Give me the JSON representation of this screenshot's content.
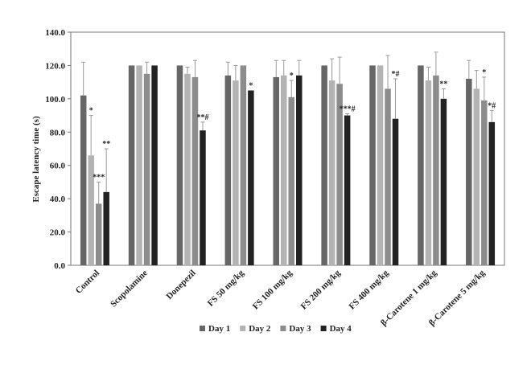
{
  "chart_data": {
    "type": "bar",
    "ylabel": "Escape latency time (s)",
    "xlabel": "",
    "ylim": [
      0,
      140
    ],
    "yticks": [
      "0.0",
      "20.0",
      "40.0",
      "60.0",
      "80.0",
      "100.0",
      "120.0",
      "140.0"
    ],
    "grid": false,
    "legend_position": "bottom",
    "categories": [
      "Control",
      "Scopolamine",
      "Donepezil",
      "FS 50 mg/kg",
      "FS 100 mg/kg",
      "FS 200 mg/kg",
      "FS 400 mg/kg",
      "β-Carotene 1 mg/kg",
      "β-Carotene 5 mg/kg"
    ],
    "series": [
      {
        "name": "Day 1",
        "color": "#666666",
        "values": [
          102,
          120,
          120,
          114,
          113,
          120,
          120,
          120,
          112
        ],
        "errors": [
          20,
          0,
          0,
          8,
          10,
          0,
          0,
          0,
          11
        ],
        "annotations": [
          "",
          "",
          "",
          "",
          "",
          "",
          "",
          "",
          ""
        ]
      },
      {
        "name": "Day 2",
        "color": "#b3b3b3",
        "values": [
          66,
          120,
          115,
          111,
          114,
          111,
          120,
          111,
          106
        ],
        "errors": [
          24,
          0,
          4,
          9,
          9,
          13,
          0,
          8,
          11
        ],
        "annotations": [
          "*",
          "",
          "",
          "",
          "",
          "",
          "",
          "",
          ""
        ]
      },
      {
        "name": "Day 3",
        "color": "#8c8c8c",
        "values": [
          37,
          115,
          113,
          120,
          101,
          109,
          106,
          114,
          99
        ],
        "errors": [
          13,
          7,
          10,
          0,
          10,
          16,
          20,
          14,
          14
        ],
        "annotations": [
          "***",
          "",
          "",
          "",
          "*",
          "",
          "",
          "",
          "*"
        ]
      },
      {
        "name": "Day 4",
        "color": "#222222",
        "values": [
          44,
          120,
          81,
          105,
          114,
          90,
          88,
          100,
          86
        ],
        "errors": [
          26,
          0,
          5,
          0,
          9,
          1,
          24,
          6,
          7
        ],
        "annotations": [
          "**",
          "",
          "**#",
          "*",
          "",
          "***#",
          "*#",
          "**",
          "*#"
        ]
      }
    ]
  }
}
